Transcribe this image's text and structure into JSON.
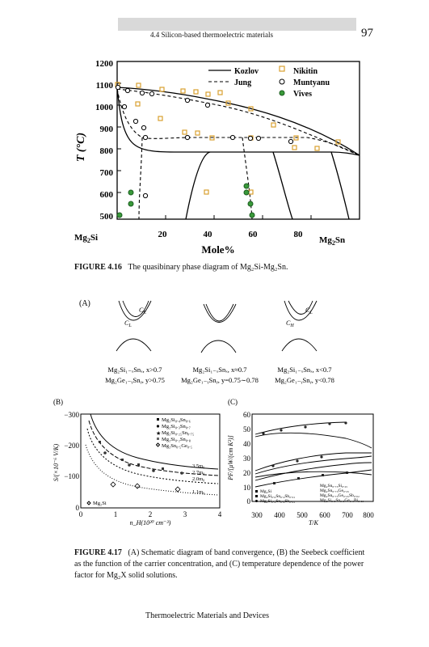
{
  "header": {
    "running_head": "4.4 Silicon-based thermoelectric materials",
    "page_number": "97"
  },
  "figure_416": {
    "y_ticks": [
      "1200",
      "1100",
      "1000",
      "900",
      "800",
      "700",
      "600",
      "500"
    ],
    "x_ticks": [
      "20",
      "40",
      "60",
      "80"
    ],
    "x_left": "Mg",
    "x_left_sub": "2",
    "x_left_tail": "Si",
    "x_right": "Mg",
    "x_right_sub": "2",
    "x_right_tail": "Sn",
    "ylabel": "T (°C)",
    "xlabel": "Mole%",
    "legend": {
      "kozlov": "Kozlov",
      "jung": "Jung",
      "nikitin": "Nikitin",
      "muntyanu": "Muntyanu",
      "vives": "Vives"
    },
    "caption_label": "FIGURE 4.16",
    "caption_text": "The quasibinary phase diagram of Mg₂Si-Mg₂Sn."
  },
  "figure_417": {
    "panel_a": {
      "label": "(A)",
      "ce": "C",
      "ce_sub": "E",
      "cl": "C",
      "cl_sub": "L",
      "ch": "C",
      "ch_sub": "H",
      "lines1": [
        "Mg₂Si₁₋ₓSnₓ, x>0.7",
        "Mg₂Si₁₋ₓSnₓ, x≈0.7",
        "Mg₂Si₁₋ₓSnₓ, x<0.7"
      ],
      "lines2": [
        "Mg₂Ge₁₋ᵧSnᵧ, y>0.75",
        "Mg₂Ge₁₋ᵧSnᵧ, y=0.75∼0.78",
        "Mg₂Ge₁₋ᵧSnᵧ, y<0.78"
      ]
    },
    "panel_b": {
      "label": "(B)",
      "y_ticks": [
        "−300",
        "−200",
        "−100",
        "0"
      ],
      "x_ticks": [
        "0",
        "1",
        "2",
        "3",
        "4"
      ],
      "ylabel": "S/(×10⁻⁶ V/K)",
      "xlabel": "n_H(10²⁰ cm⁻³)",
      "legend": [
        "Mg₂Si₀.₄Sn₀.₆",
        "Mg₂Si₀.₃Sn₀.₇",
        "Mg₂Si₀.₂₅Sn₀.₇₅",
        "Mg₂Si₀.₂Sn₀.₈",
        "Mg₂Sn₀.₅Ge₀.₅"
      ],
      "curve_labels": [
        "3.5m₀",
        "2.7m₀",
        "2.0m₀",
        "1.1m₀"
      ],
      "mg2si_label": "Mg₂Si"
    },
    "panel_c": {
      "label": "(C)",
      "y_ticks": [
        "60",
        "50",
        "40",
        "30",
        "20",
        "10",
        "0"
      ],
      "x_ticks": [
        "300",
        "400",
        "500",
        "600",
        "700",
        "800"
      ],
      "ylabel": "PF/[μW/(cm K²)]",
      "xlabel": "T/K",
      "legend_left": [
        "Mg₂Si",
        "Mg₂Si₀.₆Sn₀.₄Sb₀.₀₁",
        "Mg₂Si₀.₄Sn₀.₆Sb₀.₀₁"
      ],
      "legend_right": [
        "Mg₂Sn₀.₇₅Si₀.₂₅",
        "Mg₂Sn₀.₇₅Ge₀.₂₅",
        "Mg₂Sn₀.₇₅Ge₀.₂₅Sb₀.₀₂",
        "Mg₂Si₀.₅Sn₀.₅Ge₀.₁Bi₀.₀₃"
      ]
    },
    "caption_label": "FIGURE 4.17",
    "caption_lines": [
      "(A) Schematic diagram of band convergence, (B) the Seebeck coefficient",
      "as the function of the carrier concentration, and (C) temperature dependence of the power",
      "factor for Mg₂X solid solutions."
    ]
  },
  "footer": "Thermoelectric Materials and Devices",
  "colors": {
    "nikitin": "#d9a030",
    "vives_green": "#3a9a3a",
    "header_band": "#d9d9d9"
  }
}
